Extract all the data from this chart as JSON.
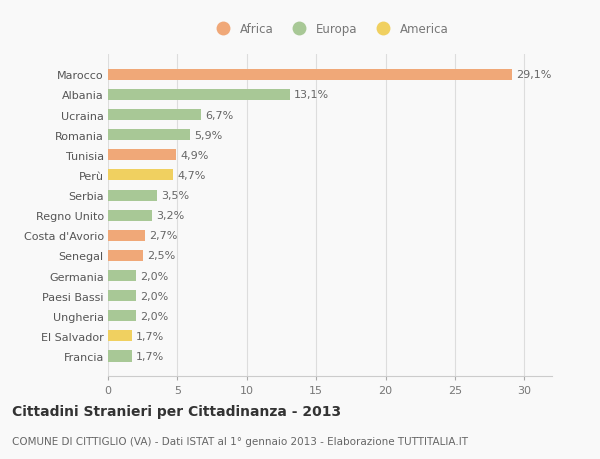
{
  "countries": [
    "Francia",
    "El Salvador",
    "Ungheria",
    "Paesi Bassi",
    "Germania",
    "Senegal",
    "Costa d'Avorio",
    "Regno Unito",
    "Serbia",
    "Perù",
    "Tunisia",
    "Romania",
    "Ucraina",
    "Albania",
    "Marocco"
  ],
  "values": [
    1.7,
    1.7,
    2.0,
    2.0,
    2.0,
    2.5,
    2.7,
    3.2,
    3.5,
    4.7,
    4.9,
    5.9,
    6.7,
    13.1,
    29.1
  ],
  "labels": [
    "1,7%",
    "1,7%",
    "2,0%",
    "2,0%",
    "2,0%",
    "2,5%",
    "2,7%",
    "3,2%",
    "3,5%",
    "4,7%",
    "4,9%",
    "5,9%",
    "6,7%",
    "13,1%",
    "29,1%"
  ],
  "colors": [
    "#a8c896",
    "#f0d060",
    "#a8c896",
    "#a8c896",
    "#a8c896",
    "#f0a878",
    "#f0a878",
    "#a8c896",
    "#a8c896",
    "#f0d060",
    "#f0a878",
    "#a8c896",
    "#a8c896",
    "#a8c896",
    "#f0a878"
  ],
  "legend_labels": [
    "Africa",
    "Europa",
    "America"
  ],
  "legend_colors": [
    "#f0a878",
    "#a8c896",
    "#f0d060"
  ],
  "title": "Cittadini Stranieri per Cittadinanza - 2013",
  "subtitle": "COMUNE DI CITTIGLIO (VA) - Dati ISTAT al 1° gennaio 2013 - Elaborazione TUTTITALIA.IT",
  "xlim": [
    0,
    32
  ],
  "background_color": "#f9f9f9",
  "grid_color": "#dddddd",
  "bar_height": 0.55,
  "title_fontsize": 10,
  "subtitle_fontsize": 7.5,
  "tick_fontsize": 8,
  "label_fontsize": 8,
  "legend_fontsize": 8.5
}
